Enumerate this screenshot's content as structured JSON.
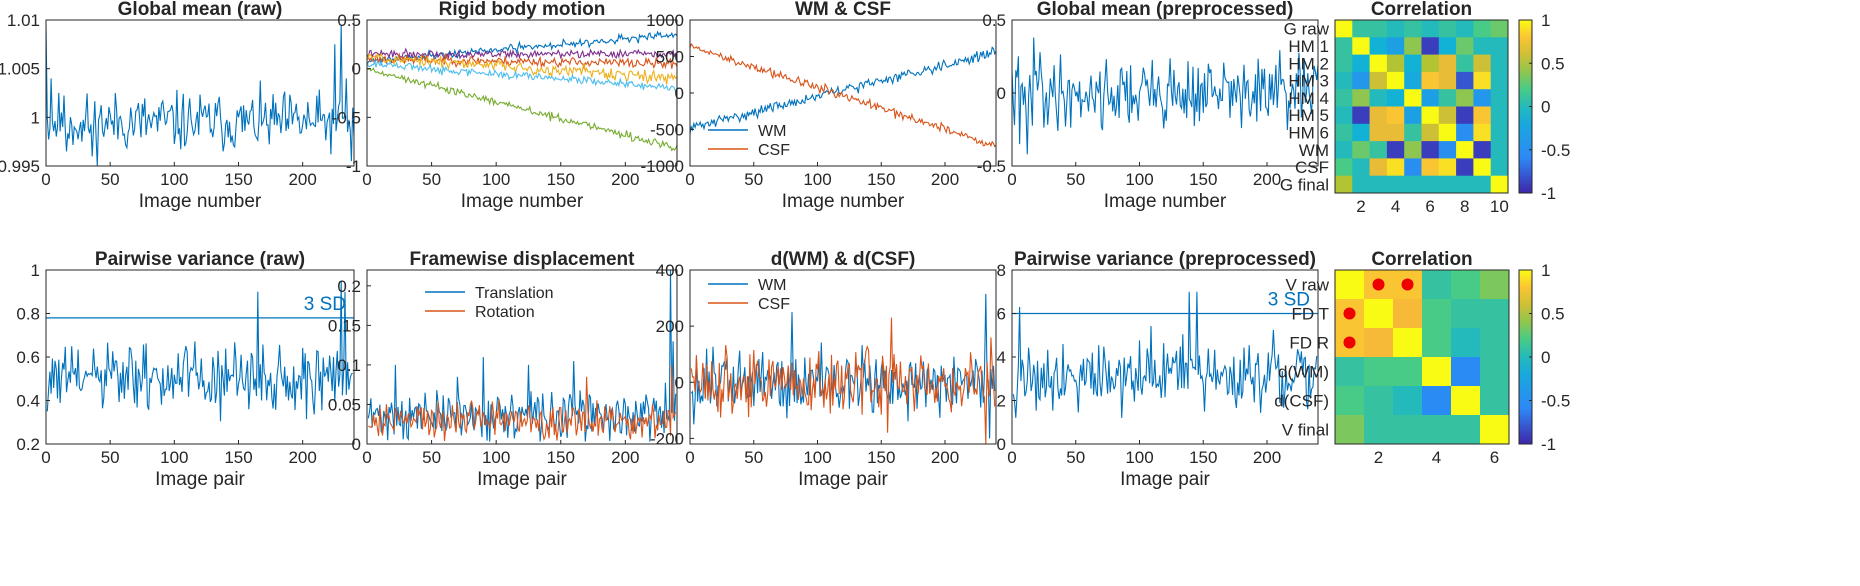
{
  "chart_data": [
    {
      "id": "p1",
      "type": "line",
      "title": "Global mean (raw)",
      "xlabel": "Image number",
      "ylabel": "",
      "xlim": [
        0,
        240
      ],
      "ylim": [
        0.995,
        1.01
      ],
      "xticks": [
        0,
        50,
        100,
        150,
        200
      ],
      "xtick_labels": [
        "0",
        "50",
        "100",
        "150",
        "200"
      ],
      "yticks": [
        0.995,
        1.0,
        1.005,
        1.01
      ],
      "ytick_labels": [
        "0.995",
        "1",
        "1.005",
        "1.01"
      ],
      "series": [
        {
          "color": "#0072bd",
          "gen": {
            "x0": 0,
            "x1": 240,
            "n": 241,
            "base": 0.9995,
            "amp": 0.0015,
            "seed": 11,
            "points": [
              [
                0,
                1.0095
              ],
              [
                4,
                1.004
              ],
              [
                12,
                1.0005
              ],
              [
                16,
                0.9965
              ],
              [
                28,
                0.9975
              ],
              [
                36,
                0.996
              ],
              [
                40,
                0.995
              ],
              [
                150,
                1.0
              ],
              [
                225,
                1.0075
              ],
              [
                230,
                1.0095
              ],
              [
                234,
                1.004
              ],
              [
                238,
                0.9955
              ],
              [
                240,
                0.998
              ]
            ]
          }
        }
      ],
      "hline": null
    },
    {
      "id": "p2",
      "type": "line",
      "title": "Rigid body motion",
      "xlabel": "Image number",
      "ylabel": "",
      "xlim": [
        0,
        240
      ],
      "ylim": [
        -1,
        0.5
      ],
      "xticks": [
        0,
        50,
        100,
        150,
        200
      ],
      "xtick_labels": [
        "0",
        "50",
        "100",
        "150",
        "200"
      ],
      "yticks": [
        -1,
        -0.5,
        0,
        0.5
      ],
      "ytick_labels": [
        "-1",
        "-0.5",
        "0",
        "0.5"
      ],
      "series": [
        {
          "color": "#0072bd",
          "gen": {
            "x0": 0,
            "x1": 240,
            "n": 241,
            "start": 0.08,
            "end": 0.35,
            "amp": 0.02,
            "seed": 21
          }
        },
        {
          "color": "#7e2f8e",
          "gen": {
            "x0": 0,
            "x1": 240,
            "n": 241,
            "start": 0.15,
            "end": 0.15,
            "amp": 0.02,
            "seed": 22
          }
        },
        {
          "color": "#d95319",
          "gen": {
            "x0": 0,
            "x1": 240,
            "n": 241,
            "start": 0.1,
            "end": 0.05,
            "amp": 0.025,
            "seed": 23
          }
        },
        {
          "color": "#edb120",
          "gen": {
            "x0": 0,
            "x1": 240,
            "n": 241,
            "start": 0.12,
            "end": -0.1,
            "amp": 0.03,
            "seed": 24
          }
        },
        {
          "color": "#4dbeee",
          "gen": {
            "x0": 0,
            "x1": 240,
            "n": 241,
            "start": 0.05,
            "end": -0.2,
            "amp": 0.02,
            "seed": 25
          }
        },
        {
          "color": "#77ac30",
          "gen": {
            "x0": 0,
            "x1": 240,
            "n": 241,
            "start": 0.0,
            "end": -0.82,
            "amp": 0.02,
            "seed": 26
          }
        }
      ],
      "hline": null
    },
    {
      "id": "p3",
      "type": "line",
      "title": "WM & CSF",
      "xlabel": "Image number",
      "ylabel": "",
      "xlim": [
        0,
        240
      ],
      "ylim": [
        -1000,
        1000
      ],
      "xticks": [
        0,
        50,
        100,
        150,
        200
      ],
      "xtick_labels": [
        "0",
        "50",
        "100",
        "150",
        "200"
      ],
      "yticks": [
        -1000,
        -500,
        0,
        500,
        1000
      ],
      "ytick_labels": [
        "-1000",
        "-500",
        "0",
        "500",
        "1000"
      ],
      "series": [
        {
          "name": "WM",
          "color": "#0072bd",
          "gen": {
            "x0": 0,
            "x1": 240,
            "n": 241,
            "start": -480,
            "end": 560,
            "amp": 35,
            "seed": 31
          }
        },
        {
          "name": "CSF",
          "color": "#d95319",
          "gen": {
            "x0": 0,
            "x1": 240,
            "n": 241,
            "start": 640,
            "end": -720,
            "amp": 30,
            "seed": 32
          }
        }
      ],
      "legend": {
        "position": "lower-left",
        "entries": [
          "WM",
          "CSF"
        ]
      },
      "hline": null
    },
    {
      "id": "p4",
      "type": "line",
      "title": "Global mean (preprocessed)",
      "xlabel": "Image number",
      "ylabel": "",
      "xlim": [
        0,
        240
      ],
      "ylim": [
        -0.5,
        0.5
      ],
      "xticks": [
        0,
        50,
        100,
        150,
        200
      ],
      "xtick_labels": [
        "0",
        "50",
        "100",
        "150",
        "200"
      ],
      "yticks": [
        -0.5,
        0,
        0.5
      ],
      "ytick_labels": [
        "-0.5",
        "0",
        "0.5"
      ],
      "series": [
        {
          "color": "#0072bd",
          "gen": {
            "x0": 0,
            "x1": 240,
            "n": 241,
            "base": 0,
            "amp": 0.12,
            "seed": 41,
            "points": [
              [
                6,
                -0.35
              ],
              [
                17,
                0.38
              ],
              [
                22,
                0.28
              ],
              [
                12,
                -0.42
              ]
            ]
          }
        }
      ],
      "hline": null
    },
    {
      "id": "p5",
      "type": "heatmap",
      "title": "Correlation",
      "xlabel": "",
      "ylabel": "",
      "row_labels": [
        "G raw",
        "HM 1",
        "HM 2",
        "HM 3",
        "HM 4",
        "HM 5",
        "HM 6",
        "WM",
        "CSF",
        "G final"
      ],
      "xticks": [
        2,
        4,
        6,
        8,
        10
      ],
      "xtick_labels": [
        "2",
        "4",
        "6",
        "8",
        "10"
      ],
      "colorbar_ticks": [
        1,
        0.5,
        0,
        -0.5,
        -1
      ],
      "colorbar_labels": [
        "1",
        "0.5",
        "0",
        "-0.5",
        "-1"
      ],
      "matrix": [
        [
          1.0,
          0.1,
          0.1,
          0.0,
          0.1,
          0.0,
          0.1,
          0.0,
          0.2,
          0.3
        ],
        [
          0.1,
          1.0,
          -0.1,
          -0.3,
          0.4,
          -0.9,
          -0.1,
          0.3,
          0.0,
          0.0
        ],
        [
          0.1,
          -0.1,
          1.0,
          0.5,
          -0.1,
          0.5,
          0.7,
          0.1,
          0.6,
          0.0
        ],
        [
          0.0,
          -0.4,
          0.6,
          1.0,
          -0.2,
          0.8,
          0.7,
          -0.8,
          0.9,
          0.0
        ],
        [
          0.1,
          0.4,
          0.0,
          -0.1,
          1.0,
          -0.3,
          0.1,
          0.4,
          -0.4,
          0.0
        ],
        [
          0.0,
          -0.9,
          0.7,
          0.8,
          -0.3,
          1.0,
          0.6,
          -0.9,
          0.8,
          0.0
        ],
        [
          0.1,
          -0.1,
          0.7,
          0.7,
          0.1,
          0.6,
          1.0,
          -0.5,
          0.9,
          0.0
        ],
        [
          0.0,
          0.3,
          0.1,
          -0.9,
          0.4,
          -0.9,
          -0.5,
          1.0,
          -0.9,
          0.0
        ],
        [
          0.2,
          0.0,
          0.7,
          0.9,
          -0.5,
          0.8,
          0.9,
          -0.9,
          1.0,
          0.0
        ],
        [
          0.5,
          0.0,
          0.0,
          0.0,
          0.0,
          0.0,
          0.0,
          0.0,
          0.0,
          1.0
        ]
      ],
      "markers": []
    },
    {
      "id": "p6",
      "type": "line",
      "title": "Pairwise variance (raw)",
      "xlabel": "Image pair",
      "ylabel": "",
      "xlim": [
        0,
        240
      ],
      "ylim": [
        0.2,
        1.0
      ],
      "xticks": [
        0,
        50,
        100,
        150,
        200
      ],
      "xtick_labels": [
        "0",
        "50",
        "100",
        "150",
        "200"
      ],
      "yticks": [
        0.2,
        0.4,
        0.6,
        0.8,
        1.0
      ],
      "ytick_labels": [
        "0.2",
        "0.4",
        "0.6",
        "0.8",
        "1"
      ],
      "series": [
        {
          "color": "#0072bd",
          "gen": {
            "x0": 1,
            "x1": 239,
            "n": 239,
            "base": 0.5,
            "amp": 0.08,
            "seed": 61,
            "points": [
              [
                1,
                0.35
              ],
              [
                165,
                0.9
              ],
              [
                168,
                0.4
              ],
              [
                230,
                0.95
              ],
              [
                233,
                0.9
              ],
              [
                236,
                0.45
              ]
            ]
          }
        }
      ],
      "hline": {
        "y": 0.78,
        "label": "3 SD"
      }
    },
    {
      "id": "p7",
      "type": "line",
      "title": "Framewise displacement",
      "xlabel": "Image pair",
      "ylabel": "",
      "xlim": [
        0,
        240
      ],
      "ylim": [
        0,
        0.22
      ],
      "xticks": [
        0,
        50,
        100,
        150,
        200
      ],
      "xtick_labels": [
        "0",
        "50",
        "100",
        "150",
        "200"
      ],
      "yticks": [
        0,
        0.05,
        0.1,
        0.15,
        0.2
      ],
      "ytick_labels": [
        "0",
        "0.05",
        "0.1",
        "0.15",
        "0.2"
      ],
      "series": [
        {
          "name": "Translation",
          "color": "#0072bd",
          "gen": {
            "x0": 1,
            "x1": 239,
            "n": 239,
            "base": 0.035,
            "amp": 0.015,
            "seed": 71,
            "positive": true,
            "points": [
              [
                22,
                0.1
              ],
              [
                70,
                0.085
              ],
              [
                90,
                0.11
              ],
              [
                125,
                0.1
              ],
              [
                160,
                0.105
              ],
              [
                235,
                0.22
              ],
              [
                237,
                0.13
              ]
            ]
          }
        },
        {
          "name": "Rotation",
          "color": "#d95319",
          "gen": {
            "x0": 1,
            "x1": 239,
            "n": 239,
            "base": 0.03,
            "amp": 0.012,
            "seed": 72,
            "positive": true,
            "points": [
              [
                170,
                0.085
              ],
              [
                236,
                0.1
              ]
            ]
          }
        }
      ],
      "legend": {
        "position": "top-center",
        "entries": [
          "Translation",
          "Rotation"
        ]
      },
      "hline": null
    },
    {
      "id": "p8",
      "type": "line",
      "title": "d(WM) & d(CSF)",
      "xlabel": "Image pair",
      "ylabel": "",
      "xlim": [
        0,
        240
      ],
      "ylim": [
        -220,
        400
      ],
      "xticks": [
        0,
        50,
        100,
        150,
        200
      ],
      "xtick_labels": [
        "0",
        "50",
        "100",
        "150",
        "200"
      ],
      "yticks": [
        -200,
        0,
        200,
        400
      ],
      "ytick_labels": [
        "-200",
        "0",
        "200",
        "400"
      ],
      "series": [
        {
          "name": "WM",
          "color": "#0072bd",
          "gen": {
            "x0": 1,
            "x1": 239,
            "n": 239,
            "base": 0,
            "amp": 60,
            "seed": 81,
            "points": [
              [
                80,
                250
              ],
              [
                232,
                315
              ],
              [
                3,
                -150
              ],
              [
                235,
                -200
              ]
            ]
          }
        },
        {
          "name": "CSF",
          "color": "#d95319",
          "gen": {
            "x0": 1,
            "x1": 239,
            "n": 239,
            "base": 0,
            "amp": 55,
            "seed": 82,
            "points": [
              [
                158,
                230
              ],
              [
                155,
                -180
              ],
              [
                232,
                -220
              ],
              [
                236,
                160
              ]
            ]
          }
        }
      ],
      "legend": {
        "position": "top-left",
        "entries": [
          "WM",
          "CSF"
        ]
      },
      "hline": null
    },
    {
      "id": "p9",
      "type": "line",
      "title": "Pairwise variance (preprocessed)",
      "xlabel": "Image pair",
      "ylabel": "",
      "xlim": [
        0,
        240
      ],
      "ylim": [
        0,
        8
      ],
      "xticks": [
        0,
        50,
        100,
        150,
        200
      ],
      "xtick_labels": [
        "0",
        "50",
        "100",
        "150",
        "200"
      ],
      "yticks": [
        0,
        2,
        4,
        6,
        8
      ],
      "ytick_labels": [
        "0",
        "2",
        "4",
        "6",
        "8"
      ],
      "series": [
        {
          "color": "#0072bd",
          "gen": {
            "x0": 1,
            "x1": 239,
            "n": 239,
            "base": 3.2,
            "amp": 0.8,
            "seed": 91,
            "points": [
              [
                3,
                1.2
              ],
              [
                6,
                6.3
              ],
              [
                139,
                7.0
              ],
              [
                142,
                3.5
              ],
              [
                145,
                7.0
              ],
              [
                148,
                3.0
              ],
              [
                232,
                1.6
              ]
            ]
          }
        }
      ],
      "hline": {
        "y": 6.0,
        "label": "3 SD"
      }
    },
    {
      "id": "p10",
      "type": "heatmap",
      "title": "Correlation",
      "xlabel": "",
      "ylabel": "",
      "row_labels": [
        "V raw",
        "FD T",
        "FD R",
        "d(WM)",
        "d(CSF)",
        "V final"
      ],
      "xticks": [
        2,
        4,
        6
      ],
      "xtick_labels": [
        "2",
        "4",
        "6"
      ],
      "colorbar_ticks": [
        1,
        0.5,
        0,
        -0.5,
        -1
      ],
      "colorbar_labels": [
        "1",
        "0.5",
        "0",
        "-0.5",
        "-1"
      ],
      "matrix": [
        [
          1.0,
          0.8,
          0.8,
          0.1,
          0.2,
          0.35
        ],
        [
          0.8,
          1.0,
          0.75,
          0.2,
          0.1,
          0.1
        ],
        [
          0.8,
          0.75,
          1.0,
          0.2,
          0.0,
          0.1
        ],
        [
          0.1,
          0.2,
          0.2,
          1.0,
          -0.55,
          0.1
        ],
        [
          0.2,
          0.1,
          0.0,
          -0.55,
          1.0,
          0.1
        ],
        [
          0.35,
          0.1,
          0.1,
          0.1,
          0.1,
          1.0
        ]
      ],
      "markers": [
        [
          0,
          1
        ],
        [
          0,
          2
        ],
        [
          1,
          0
        ],
        [
          2,
          0
        ]
      ]
    }
  ]
}
